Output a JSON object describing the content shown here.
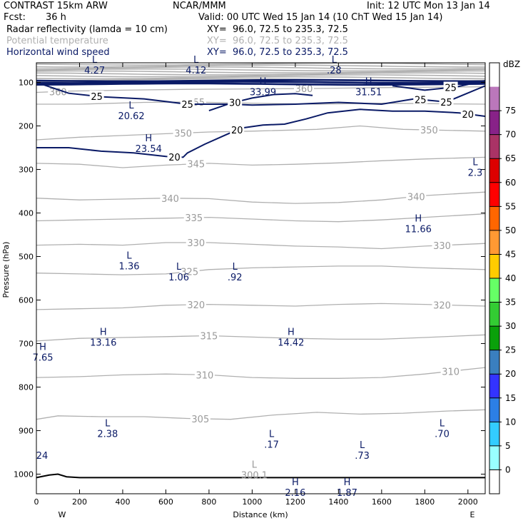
{
  "header": {
    "model": "CONTRAST 15km ARW",
    "org": "NCAR/MMM",
    "init": "Init: 12 UTC Mon 13 Jan 14",
    "fcst_label": "Fcst:",
    "fcst_value": "36 h",
    "valid": "Valid: 00 UTC Wed 15 Jan 14 (10 ChT Wed 15 Jan 14)",
    "fields": [
      {
        "name": "Radar reflectivity (lamda = 10 cm)",
        "xy": "XY=  96.0, 72.5 to 235.3, 72.5",
        "color": "#000000"
      },
      {
        "name": "Potential temperature",
        "xy": "XY=  96.0, 72.5 to 235.3, 72.5",
        "color": "#b0b0b0"
      },
      {
        "name": "Horizontal wind speed",
        "xy": "XY=  96.0, 72.5 to 235.3, 72.5",
        "color": "#0a1a66"
      }
    ]
  },
  "chart_data": {
    "type": "cross-section",
    "xlabel": "Distance (km)",
    "ylabel": "Pressure (hPa)",
    "xlim": [
      0,
      2080
    ],
    "ylim": [
      1045,
      55
    ],
    "x_ticks": [
      0,
      200,
      400,
      600,
      800,
      1000,
      1200,
      1400,
      1600,
      1800,
      2000
    ],
    "y_ticks": [
      100,
      200,
      300,
      400,
      500,
      600,
      700,
      800,
      900,
      1000
    ],
    "x_end_labels": {
      "left": "W",
      "right": "E"
    },
    "theta_isentropes": [
      {
        "level": "360",
        "label_x": 100,
        "points": [
          [
            0,
            123
          ],
          [
            150,
            120
          ],
          [
            400,
            118
          ],
          [
            700,
            116
          ],
          [
            1000,
            115
          ],
          [
            1300,
            114
          ],
          [
            1600,
            112
          ],
          [
            2080,
            110
          ]
        ]
      },
      {
        "level": "355",
        "label_x": 740,
        "points": [
          [
            0,
            150
          ],
          [
            200,
            150
          ],
          [
            500,
            146
          ],
          [
            700,
            145
          ],
          [
            1000,
            148
          ],
          [
            1300,
            150
          ],
          [
            1600,
            148
          ],
          [
            2080,
            150
          ]
        ]
      },
      {
        "level": "350",
        "label_x": 680,
        "points": [
          [
            0,
            232
          ],
          [
            200,
            226
          ],
          [
            400,
            222
          ],
          [
            600,
            218
          ],
          [
            800,
            214
          ],
          [
            1000,
            212
          ],
          [
            1300,
            208
          ],
          [
            1500,
            200
          ],
          [
            1700,
            208
          ],
          [
            2080,
            212
          ]
        ]
      },
      {
        "level": "345",
        "label_x": 740,
        "points": [
          [
            0,
            286
          ],
          [
            200,
            288
          ],
          [
            400,
            296
          ],
          [
            600,
            290
          ],
          [
            800,
            286
          ],
          [
            1000,
            290
          ],
          [
            1200,
            288
          ],
          [
            1400,
            285
          ],
          [
            1600,
            280
          ],
          [
            1800,
            276
          ],
          [
            2080,
            272
          ]
        ]
      },
      {
        "level": "340",
        "label_x": 620,
        "points": [
          [
            0,
            366
          ],
          [
            200,
            370
          ],
          [
            400,
            368
          ],
          [
            600,
            366
          ],
          [
            800,
            367
          ],
          [
            1000,
            375
          ],
          [
            1200,
            378
          ],
          [
            1400,
            376
          ],
          [
            1600,
            370
          ],
          [
            1800,
            360
          ],
          [
            2080,
            352
          ]
        ]
      },
      {
        "level": "335",
        "label_x": 730,
        "points": [
          [
            0,
            418
          ],
          [
            200,
            416
          ],
          [
            400,
            414
          ],
          [
            600,
            412
          ],
          [
            800,
            410
          ],
          [
            1000,
            414
          ],
          [
            1200,
            418
          ],
          [
            1400,
            420
          ],
          [
            1600,
            416
          ],
          [
            1800,
            410
          ],
          [
            2080,
            402
          ]
        ]
      },
      {
        "level": "330",
        "label_x": 740,
        "points": [
          [
            0,
            474
          ],
          [
            200,
            472
          ],
          [
            400,
            474
          ],
          [
            600,
            468
          ],
          [
            800,
            468
          ],
          [
            1000,
            472
          ],
          [
            1200,
            476
          ],
          [
            1400,
            478
          ],
          [
            1600,
            482
          ],
          [
            1800,
            476
          ],
          [
            2080,
            470
          ]
        ]
      },
      {
        "level": "325",
        "label_x": 710,
        "points": [
          [
            0,
            538
          ],
          [
            200,
            540
          ],
          [
            400,
            542
          ],
          [
            600,
            540
          ],
          [
            800,
            530
          ],
          [
            1000,
            526
          ],
          [
            1200,
            524
          ],
          [
            1400,
            522
          ],
          [
            1600,
            522
          ],
          [
            1800,
            526
          ],
          [
            2080,
            530
          ]
        ]
      },
      {
        "level": "320",
        "label_x": 740,
        "points": [
          [
            0,
            622
          ],
          [
            200,
            620
          ],
          [
            400,
            618
          ],
          [
            600,
            612
          ],
          [
            800,
            610
          ],
          [
            1000,
            612
          ],
          [
            1200,
            614
          ],
          [
            1400,
            610
          ],
          [
            1600,
            608
          ],
          [
            1800,
            610
          ],
          [
            2080,
            614
          ]
        ]
      },
      {
        "level": "315",
        "label_x": 800,
        "points": [
          [
            0,
            694
          ],
          [
            200,
            688
          ],
          [
            400,
            686
          ],
          [
            600,
            684
          ],
          [
            800,
            682
          ],
          [
            1000,
            685
          ],
          [
            1200,
            688
          ],
          [
            1400,
            690
          ],
          [
            1600,
            690
          ],
          [
            1800,
            686
          ],
          [
            2080,
            680
          ]
        ]
      },
      {
        "level": "310",
        "label_x": 780,
        "points": [
          [
            0,
            778
          ],
          [
            200,
            776
          ],
          [
            400,
            772
          ],
          [
            600,
            770
          ],
          [
            800,
            772
          ],
          [
            1000,
            778
          ],
          [
            1200,
            780
          ],
          [
            1400,
            780
          ],
          [
            1600,
            778
          ],
          [
            1800,
            770
          ],
          [
            2080,
            755
          ]
        ]
      },
      {
        "level": "305",
        "label_x": 760,
        "points": [
          [
            0,
            874
          ],
          [
            100,
            866
          ],
          [
            300,
            868
          ],
          [
            500,
            868
          ],
          [
            700,
            872
          ],
          [
            900,
            874
          ],
          [
            1100,
            864
          ],
          [
            1300,
            858
          ],
          [
            1500,
            862
          ],
          [
            1700,
            860
          ],
          [
            1900,
            855
          ],
          [
            2080,
            852
          ]
        ]
      }
    ],
    "wind_speed_contours": [
      {
        "level": "20",
        "labels_x": [
          640,
          930,
          2000
        ],
        "points": [
          [
            0,
            250
          ],
          [
            150,
            250
          ],
          [
            300,
            258
          ],
          [
            450,
            262
          ],
          [
            600,
            270
          ],
          [
            680,
            272
          ],
          [
            700,
            262
          ],
          [
            780,
            242
          ],
          [
            880,
            220
          ],
          [
            950,
            205
          ],
          [
            1050,
            198
          ],
          [
            1150,
            196
          ],
          [
            1250,
            184
          ],
          [
            1350,
            170
          ],
          [
            1500,
            162
          ],
          [
            1650,
            166
          ],
          [
            1800,
            166
          ],
          [
            1960,
            170
          ],
          [
            2080,
            178
          ]
        ]
      },
      {
        "level": "25",
        "labels_x": [
          280,
          700,
          1780,
          1900
        ],
        "points": [
          [
            0,
            100
          ],
          [
            150,
            125
          ],
          [
            300,
            133
          ],
          [
            500,
            138
          ],
          [
            700,
            150
          ],
          [
            900,
            150
          ],
          [
            1000,
            152
          ],
          [
            1200,
            150
          ],
          [
            1400,
            146
          ],
          [
            1600,
            150
          ],
          [
            1750,
            138
          ],
          [
            1900,
            145
          ],
          [
            2080,
            108
          ]
        ]
      },
      {
        "level": "30",
        "labels_x": [
          920
        ],
        "points": [
          [
            800,
            165
          ],
          [
            900,
            148
          ],
          [
            1000,
            136
          ],
          [
            1100,
            128
          ],
          [
            1200,
            126
          ],
          [
            1280,
            130
          ]
        ]
      },
      {
        "level": "25",
        "labels_x": [
          1920
        ],
        "points": [
          [
            1650,
            108
          ],
          [
            1800,
            118
          ],
          [
            1950,
            110
          ],
          [
            2080,
            96
          ]
        ]
      }
    ],
    "extrema": [
      {
        "type": "L",
        "value": "4.27",
        "x": 270,
        "p": 55,
        "color": "navy"
      },
      {
        "type": "L",
        "value": "4.12",
        "x": 740,
        "p": 55,
        "color": "navy"
      },
      {
        "type": "L",
        "value": ".28",
        "x": 1380,
        "p": 55,
        "color": "navy"
      },
      {
        "type": "H",
        "value": "33.99",
        "x": 1050,
        "p": 105,
        "color": "navy"
      },
      {
        "type": "H",
        "value": "31.51",
        "x": 1540,
        "p": 105,
        "color": "navy"
      },
      {
        "type": "L",
        "value": "20.62",
        "x": 440,
        "p": 160,
        "color": "navy"
      },
      {
        "type": "H",
        "value": "23.54",
        "x": 520,
        "p": 235,
        "color": "navy"
      },
      {
        "type": "L",
        "value": "2.3",
        "x": 2050,
        "p": 290,
        "color": "navy"
      },
      {
        "type": "H",
        "value": "11.66",
        "x": 1770,
        "p": 420,
        "color": "navy"
      },
      {
        "type": "L",
        "value": "1.36",
        "x": 430,
        "p": 505,
        "color": "navy"
      },
      {
        "type": "L",
        "value": "1.06",
        "x": 660,
        "p": 530,
        "color": "navy"
      },
      {
        "type": "L",
        "value": ".92",
        "x": 920,
        "p": 530,
        "color": "navy"
      },
      {
        "type": "H",
        "value": "13.16",
        "x": 310,
        "p": 680,
        "color": "navy"
      },
      {
        "type": "H",
        "value": "14.42",
        "x": 1180,
        "p": 680,
        "color": "navy"
      },
      {
        "type": "H",
        "value": "7.65",
        "x": 30,
        "p": 715,
        "color": "navy"
      },
      {
        "type": "L",
        "value": "2.38",
        "x": 330,
        "p": 890,
        "color": "navy"
      },
      {
        "type": "L",
        "value": ".70",
        "x": 1880,
        "p": 890,
        "color": "navy"
      },
      {
        "type": "L",
        "value": ".17",
        "x": 1090,
        "p": 915,
        "color": "navy"
      },
      {
        "type": "L",
        "value": ".73",
        "x": 1510,
        "p": 940,
        "color": "navy"
      },
      {
        "type": "",
        "value": "24",
        "x": 25,
        "p": 940,
        "color": "navy"
      },
      {
        "type": "L",
        "value": "300.1",
        "x": 1010,
        "p": 985,
        "color": "gray"
      },
      {
        "type": "H",
        "value": "2.16",
        "x": 1200,
        "p": 1025,
        "color": "navy"
      },
      {
        "type": "H",
        "value": "1.87",
        "x": 1440,
        "p": 1025,
        "color": "navy"
      }
    ],
    "terrain": [
      [
        0,
        1008
      ],
      [
        60,
        1002
      ],
      [
        100,
        1000
      ],
      [
        140,
        1006
      ],
      [
        200,
        1008
      ],
      [
        2080,
        1008
      ]
    ],
    "colorbar": {
      "unit": "dBZ",
      "levels": [
        "0",
        "5",
        "10",
        "15",
        "20",
        "25",
        "30",
        "35",
        "40",
        "45",
        "50",
        "55",
        "60",
        "65",
        "70",
        "75"
      ],
      "colors": [
        "#ffffff",
        "#99ffff",
        "#33ccff",
        "#2c7fe6",
        "#3333ff",
        "#3a7fbf",
        "#0aa00a",
        "#33cc33",
        "#66ff66",
        "#ffcc00",
        "#ff9933",
        "#ff6600",
        "#ff0000",
        "#dd0000",
        "#aa3366",
        "#882288",
        "#bb77bb",
        "#ffffff"
      ]
    }
  }
}
